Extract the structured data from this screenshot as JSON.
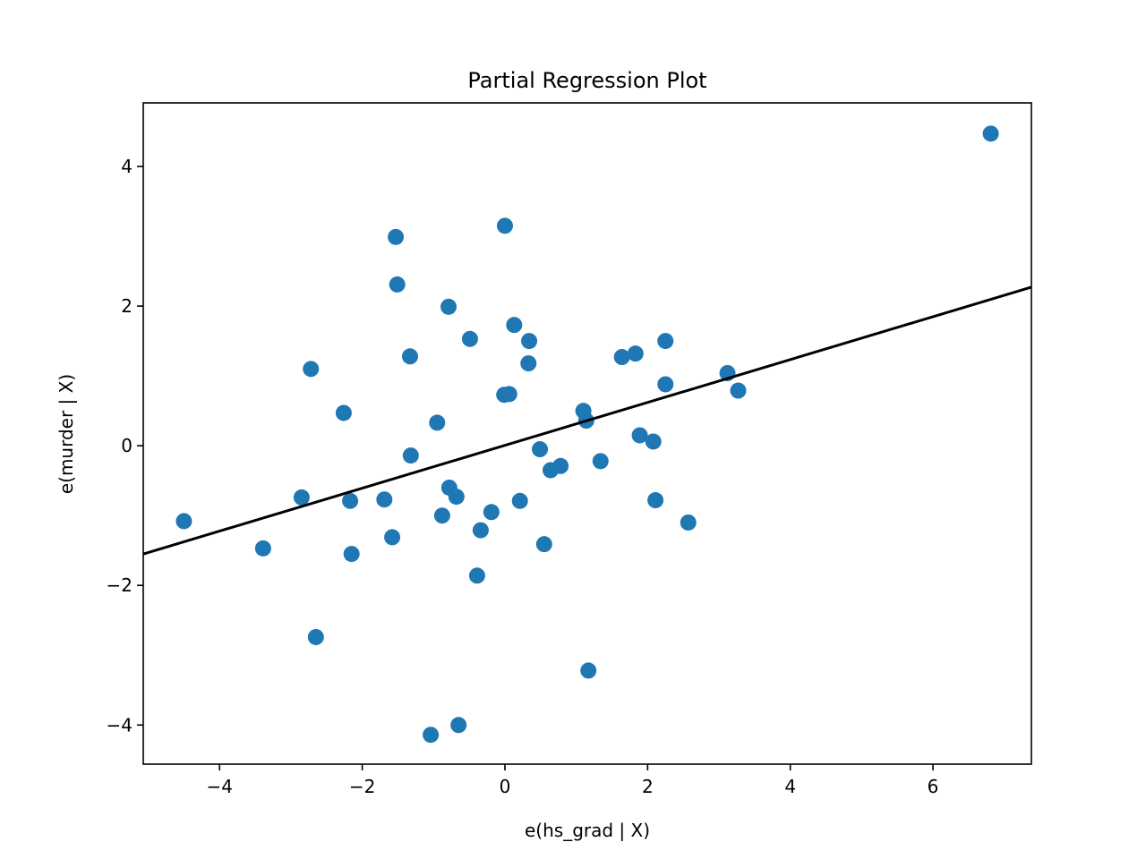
{
  "chart_data": {
    "type": "scatter",
    "title": "Partial Regression Plot",
    "xlabel": "e(hs_grad | X)",
    "ylabel": "e(murder | X)",
    "xlim": [
      -5.07,
      7.38
    ],
    "ylim": [
      -4.56,
      4.91
    ],
    "xticks": [
      -4,
      -2,
      0,
      2,
      4,
      6
    ],
    "yticks": [
      -4,
      -2,
      0,
      2,
      4
    ],
    "xtick_labels": [
      "−4",
      "−2",
      "0",
      "2",
      "4",
      "6"
    ],
    "ytick_labels": [
      "−4",
      "−2",
      "0",
      "2",
      "4"
    ],
    "grid": false,
    "point_color": "#1f77b4",
    "line_color": "#000000",
    "fit_line": {
      "slope": 0.307,
      "intercept": 0.006
    },
    "points": [
      [
        6.81,
        4.47
      ],
      [
        0.0,
        3.15
      ],
      [
        -1.53,
        2.99
      ],
      [
        -1.51,
        2.31
      ],
      [
        -0.79,
        1.99
      ],
      [
        0.13,
        1.73
      ],
      [
        -0.49,
        1.53
      ],
      [
        0.34,
        1.5
      ],
      [
        2.25,
        1.5
      ],
      [
        1.83,
        1.32
      ],
      [
        1.64,
        1.27
      ],
      [
        -1.33,
        1.28
      ],
      [
        0.33,
        1.18
      ],
      [
        -2.72,
        1.1
      ],
      [
        3.12,
        1.04
      ],
      [
        2.25,
        0.88
      ],
      [
        3.27,
        0.79
      ],
      [
        -0.01,
        0.73
      ],
      [
        0.06,
        0.74
      ],
      [
        -2.26,
        0.47
      ],
      [
        1.1,
        0.5
      ],
      [
        1.14,
        0.36
      ],
      [
        -0.95,
        0.33
      ],
      [
        1.89,
        0.15
      ],
      [
        2.08,
        0.06
      ],
      [
        0.49,
        -0.05
      ],
      [
        -1.32,
        -0.14
      ],
      [
        1.34,
        -0.22
      ],
      [
        0.64,
        -0.35
      ],
      [
        0.78,
        -0.29
      ],
      [
        -0.78,
        -0.6
      ],
      [
        -0.68,
        -0.73
      ],
      [
        -2.85,
        -0.74
      ],
      [
        -1.69,
        -0.77
      ],
      [
        -2.17,
        -0.79
      ],
      [
        0.21,
        -0.79
      ],
      [
        2.11,
        -0.78
      ],
      [
        -0.19,
        -0.95
      ],
      [
        -0.88,
        -1.0
      ],
      [
        -4.5,
        -1.08
      ],
      [
        2.57,
        -1.1
      ],
      [
        -0.34,
        -1.21
      ],
      [
        -1.58,
        -1.31
      ],
      [
        -3.39,
        -1.47
      ],
      [
        0.55,
        -1.41
      ],
      [
        -2.15,
        -1.55
      ],
      [
        -0.39,
        -1.86
      ],
      [
        -2.65,
        -2.74
      ],
      [
        1.17,
        -3.22
      ],
      [
        -0.65,
        -4.0
      ],
      [
        -1.04,
        -4.14
      ]
    ]
  }
}
